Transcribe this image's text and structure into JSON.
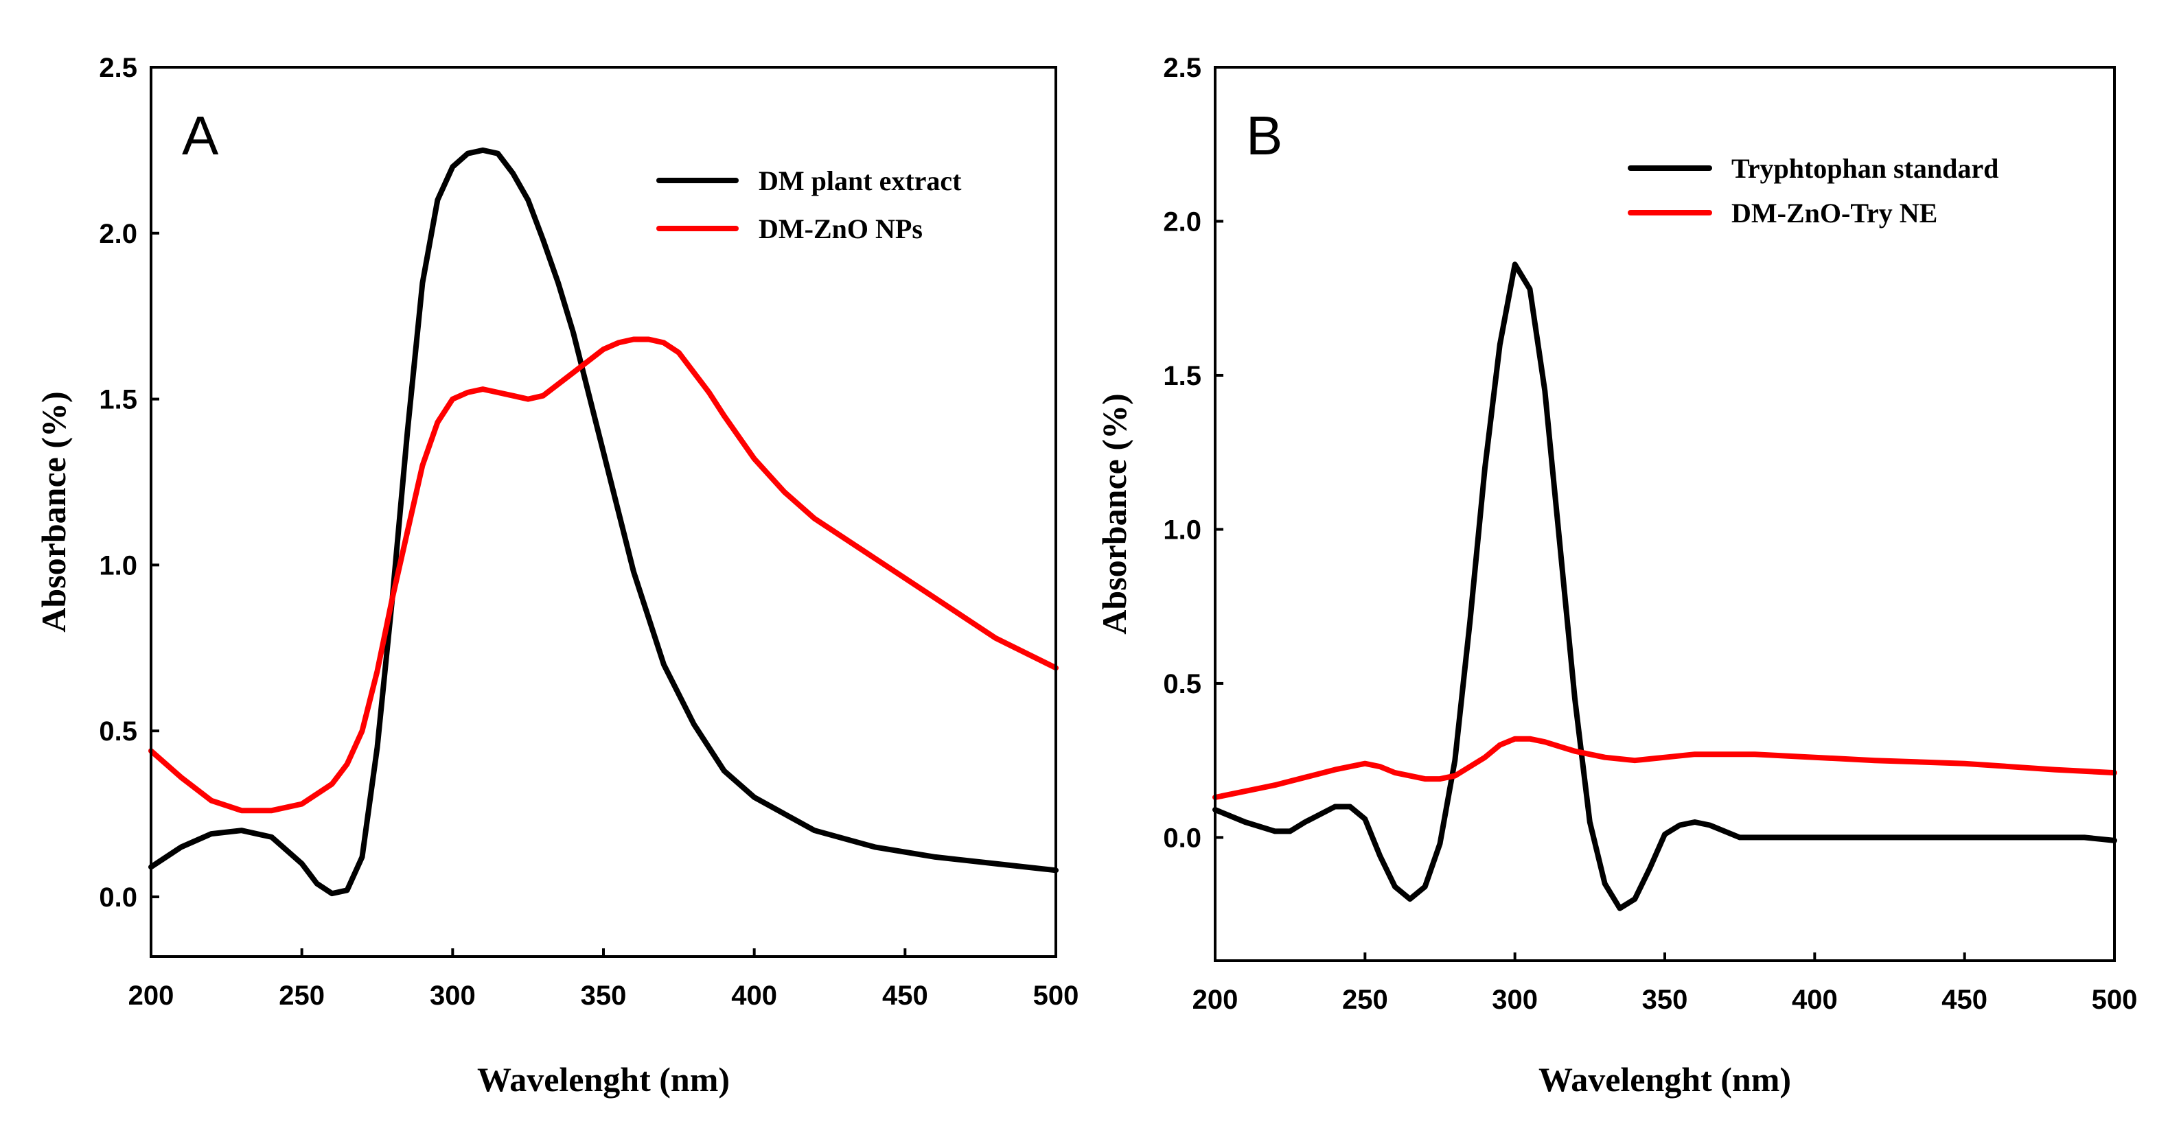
{
  "chart_data": [
    {
      "type": "line",
      "panel_label": "A",
      "xlabel": "Wavelenght (nm)",
      "ylabel": "Absorbance (%)",
      "xlim": [
        200,
        500
      ],
      "ylim": [
        -0.18,
        2.5
      ],
      "xticks": [
        "200",
        "250",
        "300",
        "350",
        "400",
        "450",
        "500"
      ],
      "yticks": [
        "0.0",
        "0.5",
        "1.0",
        "1.5",
        "2.0",
        "2.5"
      ],
      "legend_position": "top-right",
      "series": [
        {
          "name": "DM plant extract",
          "color": "#000000",
          "x": [
            200,
            210,
            220,
            230,
            240,
            250,
            255,
            260,
            265,
            270,
            275,
            280,
            285,
            290,
            295,
            300,
            305,
            310,
            315,
            320,
            325,
            330,
            335,
            340,
            345,
            350,
            360,
            370,
            380,
            390,
            400,
            420,
            440,
            460,
            480,
            500
          ],
          "y": [
            0.09,
            0.15,
            0.19,
            0.2,
            0.18,
            0.1,
            0.04,
            0.01,
            0.02,
            0.12,
            0.45,
            0.9,
            1.4,
            1.85,
            2.1,
            2.2,
            2.24,
            2.25,
            2.24,
            2.18,
            2.1,
            1.98,
            1.85,
            1.7,
            1.52,
            1.34,
            0.98,
            0.7,
            0.52,
            0.38,
            0.3,
            0.2,
            0.15,
            0.12,
            0.1,
            0.08
          ]
        },
        {
          "name": "DM-ZnO NPs",
          "color": "#ff0000",
          "x": [
            200,
            210,
            220,
            230,
            240,
            250,
            260,
            265,
            270,
            275,
            280,
            285,
            290,
            295,
            300,
            305,
            310,
            315,
            320,
            325,
            330,
            340,
            350,
            355,
            360,
            365,
            370,
            375,
            380,
            385,
            390,
            400,
            410,
            420,
            440,
            460,
            480,
            500
          ],
          "y": [
            0.44,
            0.36,
            0.29,
            0.26,
            0.26,
            0.28,
            0.34,
            0.4,
            0.5,
            0.68,
            0.9,
            1.1,
            1.3,
            1.43,
            1.5,
            1.52,
            1.53,
            1.52,
            1.51,
            1.5,
            1.51,
            1.58,
            1.65,
            1.67,
            1.68,
            1.68,
            1.67,
            1.64,
            1.58,
            1.52,
            1.45,
            1.32,
            1.22,
            1.14,
            1.02,
            0.9,
            0.78,
            0.69
          ]
        }
      ]
    },
    {
      "type": "line",
      "panel_label": "B",
      "xlabel": "Wavelenght (nm)",
      "ylabel": "Absorbance (%)",
      "xlim": [
        200,
        500
      ],
      "ylim": [
        -0.4,
        2.5
      ],
      "xticks": [
        "200",
        "250",
        "300",
        "350",
        "400",
        "450",
        "500"
      ],
      "yticks": [
        "0.0",
        "0.5",
        "1.0",
        "1.5",
        "2.0",
        "2.5"
      ],
      "legend_position": "top-right",
      "series": [
        {
          "name": "Tryphtophan standard",
          "color": "#000000",
          "x": [
            200,
            210,
            220,
            225,
            230,
            240,
            245,
            250,
            255,
            260,
            265,
            270,
            275,
            280,
            285,
            290,
            295,
            300,
            305,
            310,
            315,
            320,
            325,
            330,
            335,
            340,
            345,
            350,
            355,
            360,
            365,
            370,
            375,
            400,
            450,
            490,
            500
          ],
          "y": [
            0.09,
            0.05,
            0.02,
            0.02,
            0.05,
            0.1,
            0.1,
            0.06,
            -0.06,
            -0.16,
            -0.2,
            -0.16,
            -0.02,
            0.25,
            0.7,
            1.2,
            1.6,
            1.86,
            1.78,
            1.45,
            0.95,
            0.45,
            0.05,
            -0.15,
            -0.23,
            -0.2,
            -0.1,
            0.01,
            0.04,
            0.05,
            0.04,
            0.02,
            0.0,
            0.0,
            0.0,
            0.0,
            -0.01
          ]
        },
        {
          "name": "DM-ZnO-Try NE",
          "color": "#ff0000",
          "x": [
            200,
            220,
            240,
            250,
            255,
            260,
            270,
            275,
            280,
            290,
            295,
            300,
            305,
            310,
            320,
            330,
            340,
            350,
            360,
            380,
            400,
            420,
            450,
            480,
            500
          ],
          "y": [
            0.13,
            0.17,
            0.22,
            0.24,
            0.23,
            0.21,
            0.19,
            0.19,
            0.2,
            0.26,
            0.3,
            0.32,
            0.32,
            0.31,
            0.28,
            0.26,
            0.25,
            0.26,
            0.27,
            0.27,
            0.26,
            0.25,
            0.24,
            0.22,
            0.21
          ]
        }
      ]
    }
  ]
}
